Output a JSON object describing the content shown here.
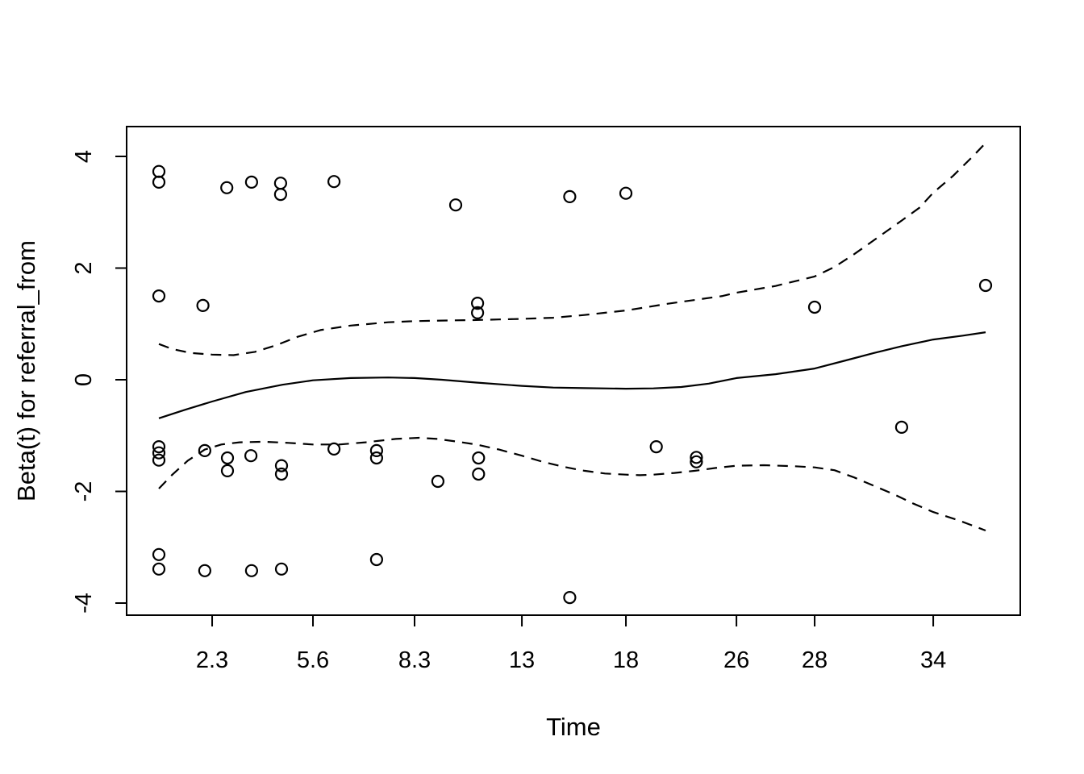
{
  "figure": {
    "background_color": "#ffffff",
    "foreground_color": "#000000"
  },
  "chart_data": {
    "type": "scatter",
    "title": "",
    "xlabel": "Time",
    "ylabel": "Beta(t) for referral_from",
    "x_scale": "nonlinear event-time axis (cox.zph diagnostic plot)",
    "grid": "off",
    "legend": "none",
    "ylim": [
      -4.22,
      4.53
    ],
    "yticks": [
      {
        "label": "-4",
        "value": -4
      },
      {
        "label": "-2",
        "value": -2
      },
      {
        "label": "0",
        "value": 0
      },
      {
        "label": "2",
        "value": 2
      },
      {
        "label": "4",
        "value": 4
      }
    ],
    "xticks": [
      {
        "label": "2.3",
        "t": 2.3,
        "f": 0.0957
      },
      {
        "label": "5.6",
        "t": 5.6,
        "f": 0.2085
      },
      {
        "label": "8.3",
        "t": 8.3,
        "f": 0.3222
      },
      {
        "label": "13",
        "t": 13,
        "f": 0.4423
      },
      {
        "label": "18",
        "t": 18,
        "f": 0.5587
      },
      {
        "label": "26",
        "t": 26,
        "f": 0.6824
      },
      {
        "label": "28",
        "t": 28,
        "f": 0.7699
      },
      {
        "label": "34",
        "t": 34,
        "f": 0.9026
      }
    ],
    "x_scale_anchors": [
      {
        "t": 0.56,
        "f": 0.0361
      },
      {
        "t": 2.3,
        "f": 0.0957
      },
      {
        "t": 5.6,
        "f": 0.2085
      },
      {
        "t": 8.3,
        "f": 0.3222
      },
      {
        "t": 13,
        "f": 0.4423
      },
      {
        "t": 18,
        "f": 0.5587
      },
      {
        "t": 26,
        "f": 0.6824
      },
      {
        "t": 28,
        "f": 0.7699
      },
      {
        "t": 34,
        "f": 0.9026
      },
      {
        "t": 36.65,
        "f": 0.9612
      }
    ],
    "points": [
      [
        0.56,
        3.73
      ],
      [
        0.56,
        3.54
      ],
      [
        0.56,
        1.5
      ],
      [
        0.56,
        -1.2
      ],
      [
        0.56,
        -1.31
      ],
      [
        0.56,
        -1.44
      ],
      [
        0.56,
        -3.13
      ],
      [
        0.56,
        -3.39
      ],
      [
        2.0,
        1.33
      ],
      [
        2.06,
        -1.27
      ],
      [
        2.06,
        -3.42
      ],
      [
        2.78,
        3.44
      ],
      [
        2.8,
        -1.4
      ],
      [
        2.8,
        -1.63
      ],
      [
        3.59,
        3.54
      ],
      [
        3.57,
        -1.36
      ],
      [
        3.59,
        -3.42
      ],
      [
        4.54,
        3.52
      ],
      [
        4.54,
        3.32
      ],
      [
        4.57,
        -1.54
      ],
      [
        4.57,
        -1.69
      ],
      [
        4.57,
        -3.39
      ],
      [
        6.16,
        3.55
      ],
      [
        6.16,
        -1.24
      ],
      [
        7.29,
        -1.27
      ],
      [
        7.29,
        -1.4
      ],
      [
        7.29,
        -3.22
      ],
      [
        10.1,
        3.13
      ],
      [
        9.32,
        -1.82
      ],
      [
        11.06,
        1.37
      ],
      [
        11.06,
        1.2
      ],
      [
        11.1,
        -1.4
      ],
      [
        11.1,
        -1.69
      ],
      [
        15.3,
        3.28
      ],
      [
        15.3,
        -3.9
      ],
      [
        18.0,
        3.34
      ],
      [
        20.2,
        -1.2
      ],
      [
        23.1,
        -1.39
      ],
      [
        23.1,
        -1.47
      ],
      [
        28.0,
        1.3
      ],
      [
        32.4,
        -0.85
      ],
      [
        36.65,
        1.69
      ]
    ],
    "series": [
      {
        "name": "smooth-estimate",
        "style": "solid",
        "points": [
          [
            0.56,
            -0.69
          ],
          [
            1.4,
            -0.54
          ],
          [
            2.3,
            -0.39
          ],
          [
            3.4,
            -0.22
          ],
          [
            4.6,
            -0.09
          ],
          [
            5.6,
            -0.01
          ],
          [
            6.6,
            0.03
          ],
          [
            7.6,
            0.04
          ],
          [
            8.3,
            0.03
          ],
          [
            9.5,
            0.0
          ],
          [
            11,
            -0.05
          ],
          [
            13,
            -0.11
          ],
          [
            14.5,
            -0.14
          ],
          [
            16,
            -0.15
          ],
          [
            18,
            -0.16
          ],
          [
            20,
            -0.155
          ],
          [
            22,
            -0.13
          ],
          [
            24,
            -0.07
          ],
          [
            26,
            0.03
          ],
          [
            27,
            0.1
          ],
          [
            28,
            0.2
          ],
          [
            29.5,
            0.34
          ],
          [
            31,
            0.48
          ],
          [
            32.4,
            0.6
          ],
          [
            34,
            0.72
          ],
          [
            35.5,
            0.79
          ],
          [
            36.65,
            0.85
          ]
        ]
      },
      {
        "name": "upper-confidence-band",
        "style": "dashed",
        "points": [
          [
            0.56,
            0.64
          ],
          [
            1.0,
            0.55
          ],
          [
            1.6,
            0.48
          ],
          [
            2.3,
            0.45
          ],
          [
            3.0,
            0.44
          ],
          [
            3.7,
            0.5
          ],
          [
            4.4,
            0.62
          ],
          [
            5.1,
            0.77
          ],
          [
            5.8,
            0.89
          ],
          [
            6.6,
            0.97
          ],
          [
            7.6,
            1.03
          ],
          [
            8.3,
            1.05
          ],
          [
            9.5,
            1.06
          ],
          [
            11,
            1.07
          ],
          [
            12,
            1.08
          ],
          [
            13,
            1.09
          ],
          [
            14.5,
            1.11
          ],
          [
            16,
            1.16
          ],
          [
            18,
            1.24
          ],
          [
            19.5,
            1.3
          ],
          [
            21,
            1.36
          ],
          [
            23,
            1.43
          ],
          [
            25,
            1.5
          ],
          [
            26,
            1.56
          ],
          [
            27,
            1.68
          ],
          [
            28,
            1.85
          ],
          [
            29,
            2.02
          ],
          [
            30,
            2.25
          ],
          [
            31,
            2.5
          ],
          [
            32.4,
            2.85
          ],
          [
            33.3,
            3.08
          ],
          [
            34,
            3.35
          ],
          [
            35,
            3.65
          ],
          [
            36,
            4.0
          ],
          [
            36.65,
            4.24
          ]
        ]
      },
      {
        "name": "lower-confidence-band",
        "style": "dashed",
        "points": [
          [
            0.56,
            -1.95
          ],
          [
            1.0,
            -1.7
          ],
          [
            1.5,
            -1.45
          ],
          [
            2.06,
            -1.25
          ],
          [
            2.6,
            -1.16
          ],
          [
            3.2,
            -1.12
          ],
          [
            4.0,
            -1.11
          ],
          [
            4.8,
            -1.13
          ],
          [
            5.6,
            -1.16
          ],
          [
            6.3,
            -1.16
          ],
          [
            7.0,
            -1.12
          ],
          [
            7.8,
            -1.06
          ],
          [
            8.5,
            -1.04
          ],
          [
            9.3,
            -1.06
          ],
          [
            10.2,
            -1.11
          ],
          [
            11,
            -1.16
          ],
          [
            12,
            -1.25
          ],
          [
            13,
            -1.36
          ],
          [
            14,
            -1.47
          ],
          [
            15,
            -1.56
          ],
          [
            16,
            -1.63
          ],
          [
            17,
            -1.68
          ],
          [
            18,
            -1.7
          ],
          [
            19,
            -1.71
          ],
          [
            20,
            -1.7
          ],
          [
            21.5,
            -1.67
          ],
          [
            23,
            -1.63
          ],
          [
            24.5,
            -1.58
          ],
          [
            26,
            -1.54
          ],
          [
            26.7,
            -1.53
          ],
          [
            27.5,
            -1.55
          ],
          [
            28,
            -1.57
          ],
          [
            29,
            -1.62
          ],
          [
            30,
            -1.75
          ],
          [
            31,
            -1.9
          ],
          [
            32,
            -2.05
          ],
          [
            33,
            -2.22
          ],
          [
            34,
            -2.37
          ],
          [
            35.3,
            -2.52
          ],
          [
            36.65,
            -2.7
          ]
        ]
      }
    ]
  }
}
